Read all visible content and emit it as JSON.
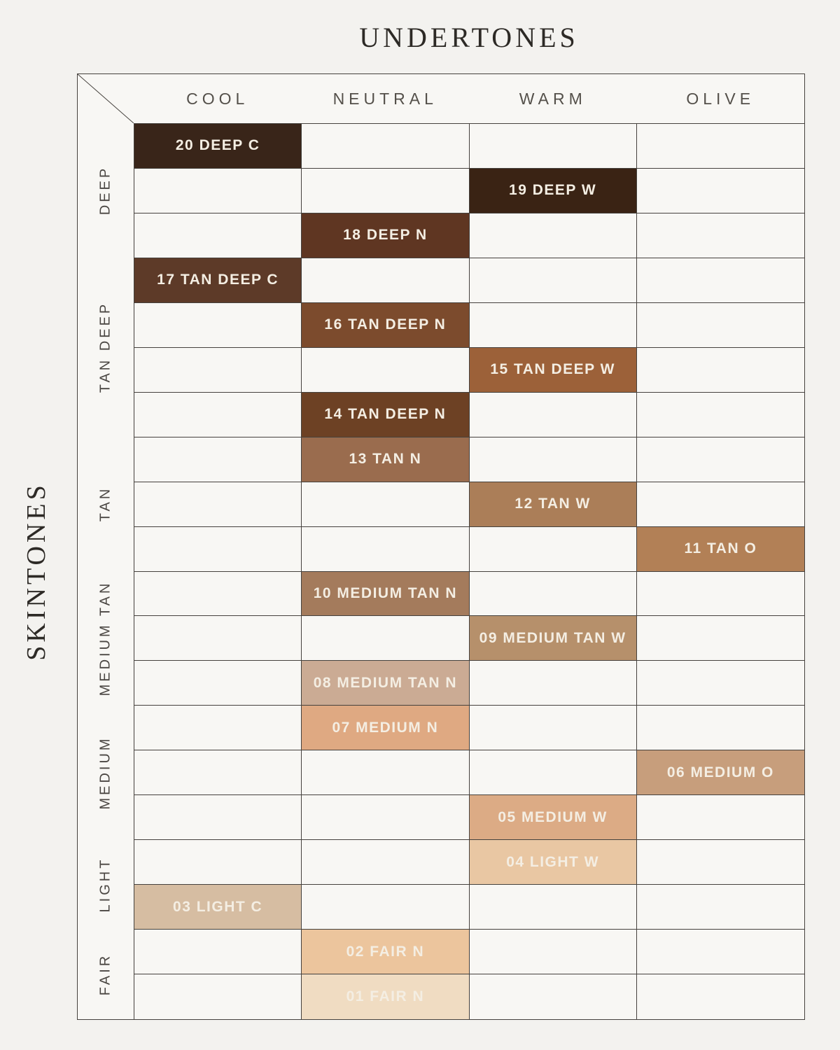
{
  "title": "UNDERTONES",
  "side_label": "SKINTONES",
  "colors": {
    "page_background": "#f3f2ef",
    "cell_background": "#f8f7f4",
    "grid_line": "#45413d",
    "title_text": "#2d2a26",
    "header_text": "#54504a",
    "group_label_text": "#4a4642",
    "shade_label_text": "#f4eee3"
  },
  "chart_data": {
    "type": "heatmap",
    "title": "UNDERTONES",
    "row_axis_label": "SKINTONES",
    "columns": [
      "COOL",
      "NEUTRAL",
      "WARM",
      "OLIVE"
    ],
    "total_rows": 20,
    "row_groups": [
      {
        "label": "DEEP",
        "row_count": 3
      },
      {
        "label": "TAN DEEP",
        "row_count": 4
      },
      {
        "label": "TAN",
        "row_count": 3
      },
      {
        "label": "MEDIUM TAN",
        "row_count": 3
      },
      {
        "label": "MEDIUM",
        "row_count": 3
      },
      {
        "label": "LIGHT",
        "row_count": 2
      },
      {
        "label": "FAIR",
        "row_count": 2
      }
    ],
    "shades": [
      {
        "row": 1,
        "column": "COOL",
        "label": "20 DEEP C",
        "color": "#392519"
      },
      {
        "row": 2,
        "column": "WARM",
        "label": "19 DEEP W",
        "color": "#3a2314"
      },
      {
        "row": 3,
        "column": "NEUTRAL",
        "label": "18 DEEP N",
        "color": "#5f3622"
      },
      {
        "row": 4,
        "column": "COOL",
        "label": "17 TAN DEEP C",
        "color": "#5d3a28"
      },
      {
        "row": 5,
        "column": "NEUTRAL",
        "label": "16 TAN DEEP N",
        "color": "#7c4b2d"
      },
      {
        "row": 6,
        "column": "WARM",
        "label": "15 TAN DEEP W",
        "color": "#9c6139"
      },
      {
        "row": 7,
        "column": "NEUTRAL",
        "label": "14 TAN DEEP N",
        "color": "#6d4124"
      },
      {
        "row": 8,
        "column": "NEUTRAL",
        "label": "13 TAN N",
        "color": "#9a6c4e"
      },
      {
        "row": 9,
        "column": "WARM",
        "label": "12 TAN W",
        "color": "#ab7e58"
      },
      {
        "row": 10,
        "column": "OLIVE",
        "label": "11 TAN O",
        "color": "#b28056"
      },
      {
        "row": 11,
        "column": "NEUTRAL",
        "label": "10 MEDIUM TAN N",
        "color": "#a47b5c"
      },
      {
        "row": 12,
        "column": "WARM",
        "label": "09 MEDIUM TAN W",
        "color": "#b6906b"
      },
      {
        "row": 13,
        "column": "NEUTRAL",
        "label": "08 MEDIUM TAN N",
        "color": "#cbab94"
      },
      {
        "row": 14,
        "column": "NEUTRAL",
        "label": "07 MEDIUM N",
        "color": "#dfa982"
      },
      {
        "row": 15,
        "column": "OLIVE",
        "label": "06 MEDIUM O",
        "color": "#c79e7c"
      },
      {
        "row": 16,
        "column": "WARM",
        "label": "05 MEDIUM W",
        "color": "#dcab85"
      },
      {
        "row": 17,
        "column": "WARM",
        "label": "04 LIGHT W",
        "color": "#e9c7a3"
      },
      {
        "row": 18,
        "column": "COOL",
        "label": "03 LIGHT C",
        "color": "#d6bda2"
      },
      {
        "row": 19,
        "column": "NEUTRAL",
        "label": "02 FAIR N",
        "color": "#ecc59d"
      },
      {
        "row": 20,
        "column": "NEUTRAL",
        "label": "01 FAIR N",
        "color": "#f0dcc2"
      }
    ]
  }
}
